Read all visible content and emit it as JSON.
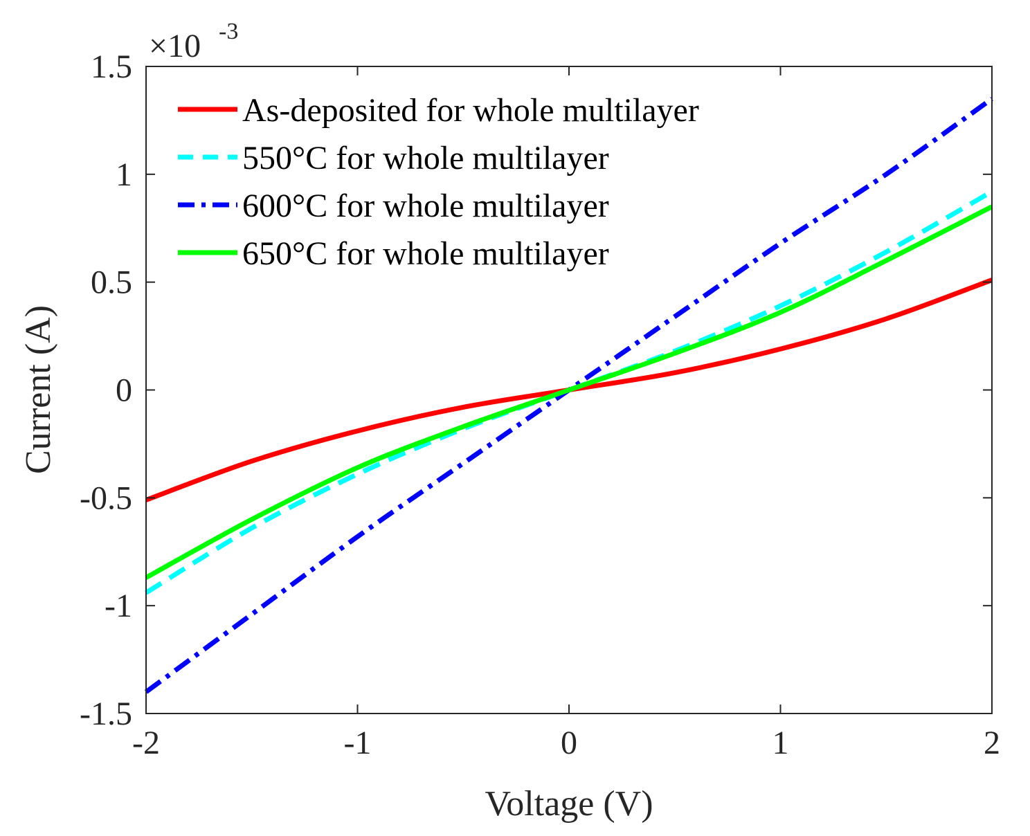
{
  "chart_data": {
    "type": "line",
    "xlabel": "Voltage (V)",
    "ylabel": "Current (A)",
    "xlim": [
      -2,
      2
    ],
    "ylim": [
      -1.5,
      1.5
    ],
    "y_exponent_base": "×10",
    "y_exponent_power": "-3",
    "xticks": [
      {
        "value": -2,
        "label": "-2"
      },
      {
        "value": -1,
        "label": "-1"
      },
      {
        "value": 0,
        "label": "0"
      },
      {
        "value": 1,
        "label": "1"
      },
      {
        "value": 2,
        "label": "2"
      }
    ],
    "yticks": [
      {
        "value": -1.5,
        "label": "-1.5"
      },
      {
        "value": -1,
        "label": "-1"
      },
      {
        "value": -0.5,
        "label": "-0.5"
      },
      {
        "value": 0,
        "label": "0"
      },
      {
        "value": 0.5,
        "label": "0.5"
      },
      {
        "value": 1,
        "label": "1"
      },
      {
        "value": 1.5,
        "label": "1.5"
      }
    ],
    "legend_position": "top-left",
    "series": [
      {
        "name": "As-deposited for whole multilayer",
        "color": "#ff0000",
        "style": "solid",
        "x": [
          -2,
          -1.5,
          -1,
          -0.5,
          0,
          0.5,
          1,
          1.5,
          2
        ],
        "y": [
          -0.51,
          -0.33,
          -0.19,
          -0.08,
          0,
          0.08,
          0.19,
          0.33,
          0.51
        ]
      },
      {
        "name": "550°C for whole multilayer",
        "color": "#00ffff",
        "style": "dashed",
        "x": [
          -2,
          -1.5,
          -1,
          -0.5,
          0,
          0.5,
          1,
          1.5,
          2
        ],
        "y": [
          -0.94,
          -0.64,
          -0.39,
          -0.18,
          0,
          0.18,
          0.39,
          0.64,
          0.92
        ]
      },
      {
        "name": "600°C for whole multilayer",
        "color": "#0000ff",
        "style": "dashdot",
        "x": [
          -2,
          -1.5,
          -1,
          -0.5,
          0,
          0.5,
          1,
          1.5,
          2
        ],
        "y": [
          -1.4,
          -1.04,
          -0.68,
          -0.34,
          0,
          0.34,
          0.68,
          1.0,
          1.35
        ]
      },
      {
        "name": "650°C for whole multilayer",
        "color": "#00ff00",
        "style": "solid",
        "x": [
          -2,
          -1.5,
          -1,
          -0.5,
          0,
          0.5,
          1,
          1.5,
          2
        ],
        "y": [
          -0.87,
          -0.6,
          -0.36,
          -0.17,
          0,
          0.17,
          0.36,
          0.6,
          0.85
        ]
      }
    ]
  }
}
